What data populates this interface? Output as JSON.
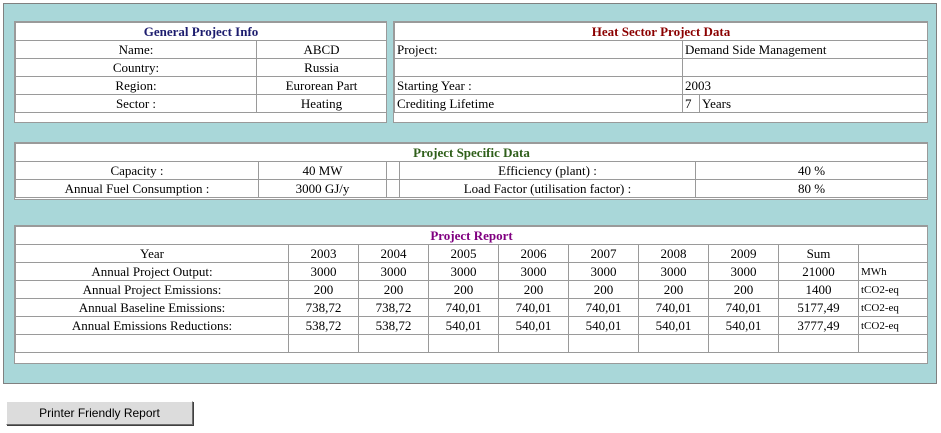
{
  "general": {
    "title": "General Project Info",
    "rows": [
      {
        "label": "Name:",
        "value": "ABCD"
      },
      {
        "label": "Country:",
        "value": "Russia"
      },
      {
        "label": "Region:",
        "value": "Eurorean Part"
      },
      {
        "label": "Sector :",
        "value": "Heating"
      }
    ]
  },
  "heat": {
    "title": "Heat Sector Project Data",
    "rows": [
      {
        "label": "Project:",
        "value": "Demand Side Management"
      },
      {
        "label": "",
        "value": ""
      },
      {
        "label": "Starting Year :",
        "value": "2003"
      },
      {
        "label": "Crediting Lifetime",
        "value": "7",
        "unit": "Years"
      }
    ]
  },
  "specific": {
    "title": "Project Specific Data",
    "capacity_label": "Capacity :",
    "capacity_value": "40  MW",
    "fuel_label": "Annual Fuel Consumption :",
    "fuel_value": "3000  GJ/y",
    "efficiency_label": "Efficiency (plant) :",
    "efficiency_value": "40 %",
    "load_label": "Load Factor (utilisation factor) :",
    "load_value": "80  %"
  },
  "report": {
    "title": "Project Report",
    "header": [
      "Year",
      "2003",
      "2004",
      "2005",
      "2006",
      "2007",
      "2008",
      "2009",
      "Sum",
      ""
    ],
    "rows": [
      [
        "Annual Project Output:",
        "3000",
        "3000",
        "3000",
        "3000",
        "3000",
        "3000",
        "3000",
        "21000",
        "MWh"
      ],
      [
        "Annual Project Emissions:",
        "200",
        "200",
        "200",
        "200",
        "200",
        "200",
        "200",
        "1400",
        "tCO2-eq"
      ],
      [
        "Annual Baseline Emissions:",
        "738,72",
        "738,72",
        "740,01",
        "740,01",
        "740,01",
        "740,01",
        "740,01",
        "5177,49",
        "tCO2-eq"
      ],
      [
        "Annual Emissions Reductions:",
        "538,72",
        "538,72",
        "540,01",
        "540,01",
        "540,01",
        "540,01",
        "540,01",
        "3777,49",
        "tCO2-eq"
      ],
      [
        "",
        "",
        "",
        "",
        "",
        "",
        "",
        "",
        "",
        ""
      ]
    ]
  },
  "button": {
    "label": "Printer Friendly Report"
  }
}
